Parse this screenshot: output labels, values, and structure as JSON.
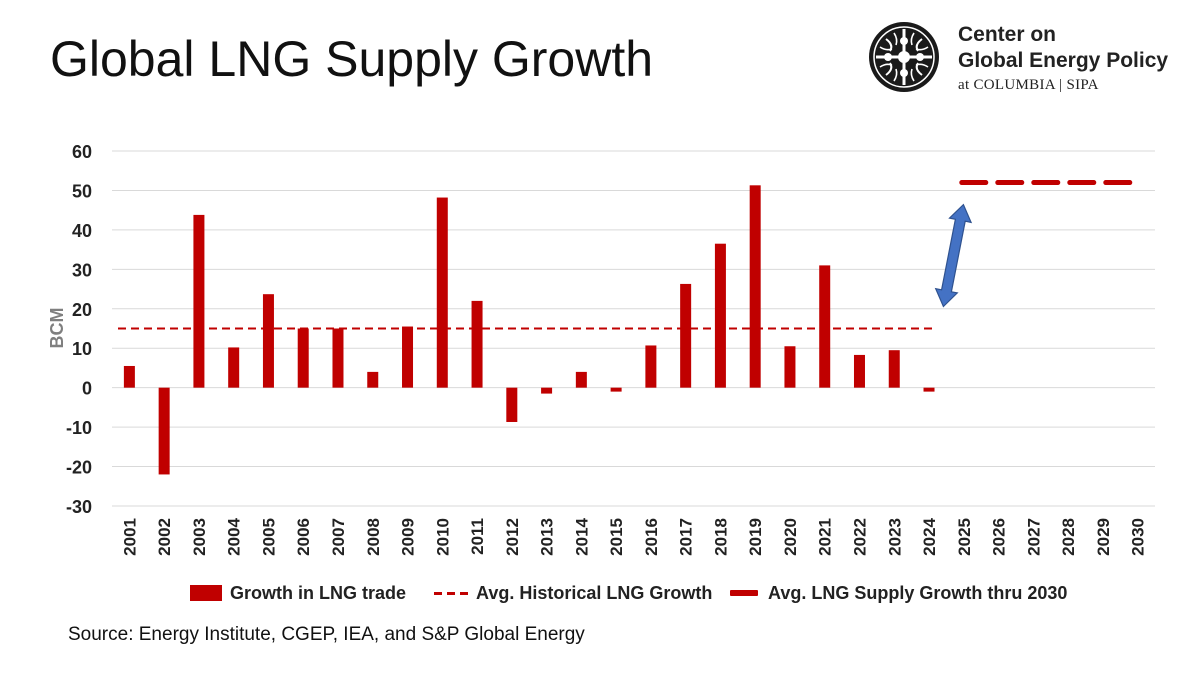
{
  "header": {
    "title": "Global LNG Supply Growth"
  },
  "logo": {
    "line1": "Center on",
    "line2": "Global Energy Policy",
    "line3": "at COLUMBIA | SIPA"
  },
  "source": "Source: Energy Institute, CGEP, IEA, and S&P Global Energy",
  "colors": {
    "bar": "#C00000",
    "arrow_fill": "#4472C4",
    "arrow_stroke": "#2F528F",
    "grid": "#D9D9D9"
  },
  "chart_data": {
    "type": "bar",
    "ylabel": "BCM",
    "ylim": [
      -30,
      60
    ],
    "yticks": [
      60,
      50,
      40,
      30,
      20,
      10,
      0,
      -10,
      -20,
      -30
    ],
    "grid": true,
    "legend_position": "bottom",
    "categories": [
      "2001",
      "2002",
      "2003",
      "2004",
      "2005",
      "2006",
      "2007",
      "2008",
      "2009",
      "2010",
      "2011",
      "2012",
      "2013",
      "2014",
      "2015",
      "2016",
      "2017",
      "2018",
      "2019",
      "2020",
      "2021",
      "2022",
      "2023",
      "2024",
      "2025",
      "2026",
      "2027",
      "2028",
      "2029",
      "2030"
    ],
    "series": [
      {
        "name": "Growth in LNG trade",
        "kind": "bar",
        "values": [
          5.5,
          -22,
          43.8,
          10.2,
          23.7,
          15,
          15,
          4,
          15.5,
          48.2,
          22,
          -8.7,
          -1.5,
          4,
          -1,
          10.7,
          26.3,
          36.5,
          51.3,
          10.5,
          31,
          8.3,
          9.5,
          -1,
          null,
          null,
          null,
          null,
          null,
          null
        ]
      },
      {
        "name": "Avg. Historical LNG Growth",
        "kind": "dashed-line",
        "value": 15,
        "from": "2001",
        "to": "2024"
      },
      {
        "name": "Avg. LNG Supply Growth thru 2030",
        "kind": "thick-dashed-line",
        "value": 52,
        "from": "2025",
        "to": "2030"
      }
    ],
    "annotation": {
      "type": "double-arrow",
      "from_value": 15,
      "to_value": 52,
      "at": "2024-2025"
    }
  }
}
